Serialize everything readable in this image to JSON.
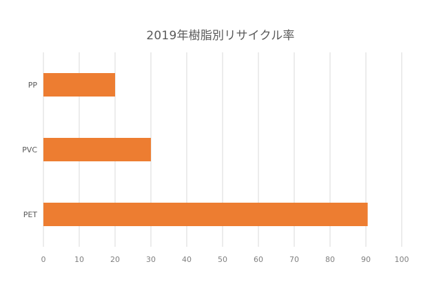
{
  "chart_data": {
    "type": "bar",
    "orientation": "horizontal",
    "title": "2019年樹脂別リサイクル率",
    "categories": [
      "PP",
      "PVC",
      "PET"
    ],
    "values": [
      20,
      30,
      90.5
    ],
    "xlim": [
      0,
      100
    ],
    "xticks": [
      0,
      10,
      20,
      30,
      40,
      50,
      60,
      70,
      80,
      90,
      100
    ],
    "xlabel": "",
    "ylabel": "",
    "grid": true,
    "legend": "none",
    "colors": {
      "bar": "#ED7D31",
      "grid": "#D9D9D9",
      "tick_text": "#7F7F7F",
      "title_text": "#595959"
    }
  }
}
